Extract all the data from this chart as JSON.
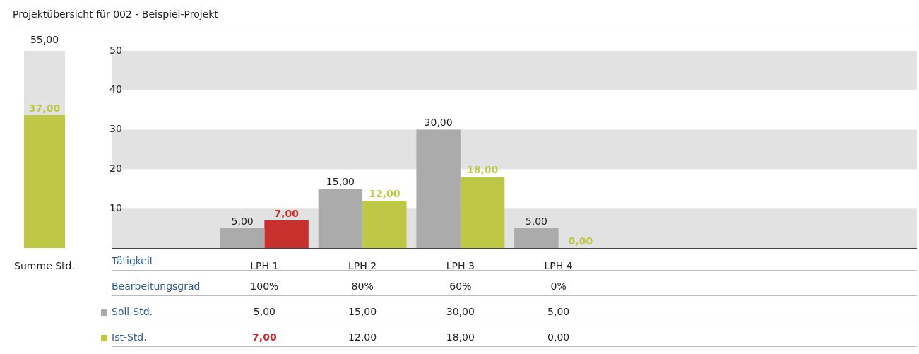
{
  "chart_data": [
    {
      "type": "bar",
      "title": "Projektübersicht für 002 - Beispiel-Projekt",
      "categories": [
        "Summe Std."
      ],
      "stacked": true,
      "totals": [
        "55,00"
      ],
      "series": [
        {
          "color": "#bec846",
          "values": [
            37
          ],
          "value_labels": [
            "37,00"
          ]
        },
        {
          "color": "#e2e2e2",
          "values": [
            18
          ]
        }
      ]
    },
    {
      "type": "bar",
      "xlabel": "Tätigkeit",
      "categories": [
        "LPH 1",
        "LPH 2",
        "LPH 3",
        "LPH 4"
      ],
      "ylim": [
        0,
        50
      ],
      "yticks": [
        10,
        20,
        30,
        40,
        50
      ],
      "bands": [
        {
          "axis": "y",
          "from": 0,
          "to": 10,
          "color": "#e2e2e2"
        },
        {
          "axis": "y",
          "from": 20,
          "to": 30,
          "color": "#e2e2e2"
        },
        {
          "axis": "y",
          "from": 40,
          "to": 50,
          "color": "#e2e2e2"
        }
      ],
      "series": [
        {
          "name": "Soll-Std.",
          "color": "#ababab",
          "values": [
            5,
            15,
            30,
            5
          ],
          "value_labels": [
            "5,00",
            "15,00",
            "30,00",
            "5,00"
          ]
        },
        {
          "name": "Ist-Std.",
          "color": "#bec846",
          "colors": [
            "#c8302e",
            "#bec846",
            "#bec846",
            "#bec846"
          ],
          "values": [
            7,
            12,
            18,
            0
          ],
          "value_labels": [
            "7,00",
            "12,00",
            "18,00",
            "0,00"
          ]
        }
      ],
      "annotations": [
        "Bearbeitungsgrad",
        "100%",
        "80%",
        "60%",
        "0%"
      ],
      "legend": "bottom left"
    }
  ]
}
